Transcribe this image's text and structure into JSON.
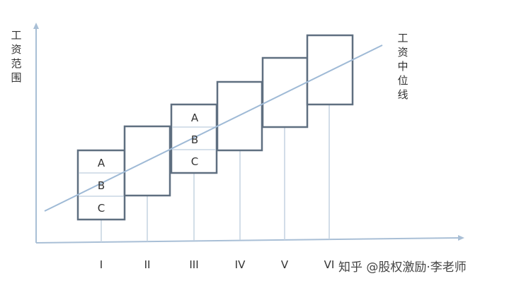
{
  "y_axis_label": "工资范围",
  "line_label": "工资中位线",
  "grades": [
    {
      "label": "I",
      "subgrades": [
        "A",
        "B",
        "C"
      ]
    },
    {
      "label": "II",
      "subgrades": []
    },
    {
      "label": "III",
      "subgrades": [
        "A",
        "B",
        "C"
      ]
    },
    {
      "label": "IV",
      "subgrades": []
    },
    {
      "label": "V",
      "subgrades": []
    },
    {
      "label": "VI",
      "subgrades": []
    }
  ],
  "watermark": "知乎 @股权激励·李老师",
  "colors": {
    "axis": "#a9bfd6",
    "box_border": "#5f6f80",
    "median_line": "#9fbad6",
    "drop_line": "#c4d2e1",
    "inner_divider": "#c8d6e4"
  }
}
